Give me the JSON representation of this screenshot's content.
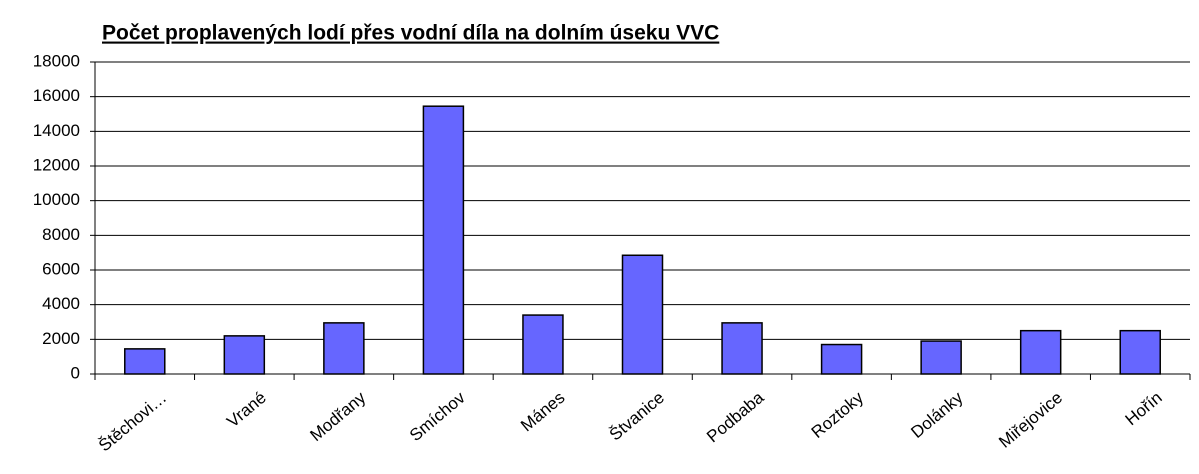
{
  "chart_data": {
    "type": "bar",
    "title": "Počet proplavených lodí přes vodní díla na dolním úseku VVC",
    "categories": [
      "Štěchovi…",
      "Vrané",
      "Modřany",
      "Smíchov",
      "Mánes",
      "Štvanice",
      "Podbaba",
      "Roztoky",
      "Dolánky",
      "Miřejovice",
      "Hořín"
    ],
    "values": [
      1450,
      2200,
      2950,
      15450,
      3400,
      6850,
      2950,
      1700,
      1900,
      2500,
      2500
    ],
    "color": "#6666ff",
    "ylim": [
      0,
      18000
    ],
    "yticks": [
      0,
      2000,
      4000,
      6000,
      8000,
      10000,
      12000,
      14000,
      16000,
      18000
    ],
    "grid": true
  }
}
